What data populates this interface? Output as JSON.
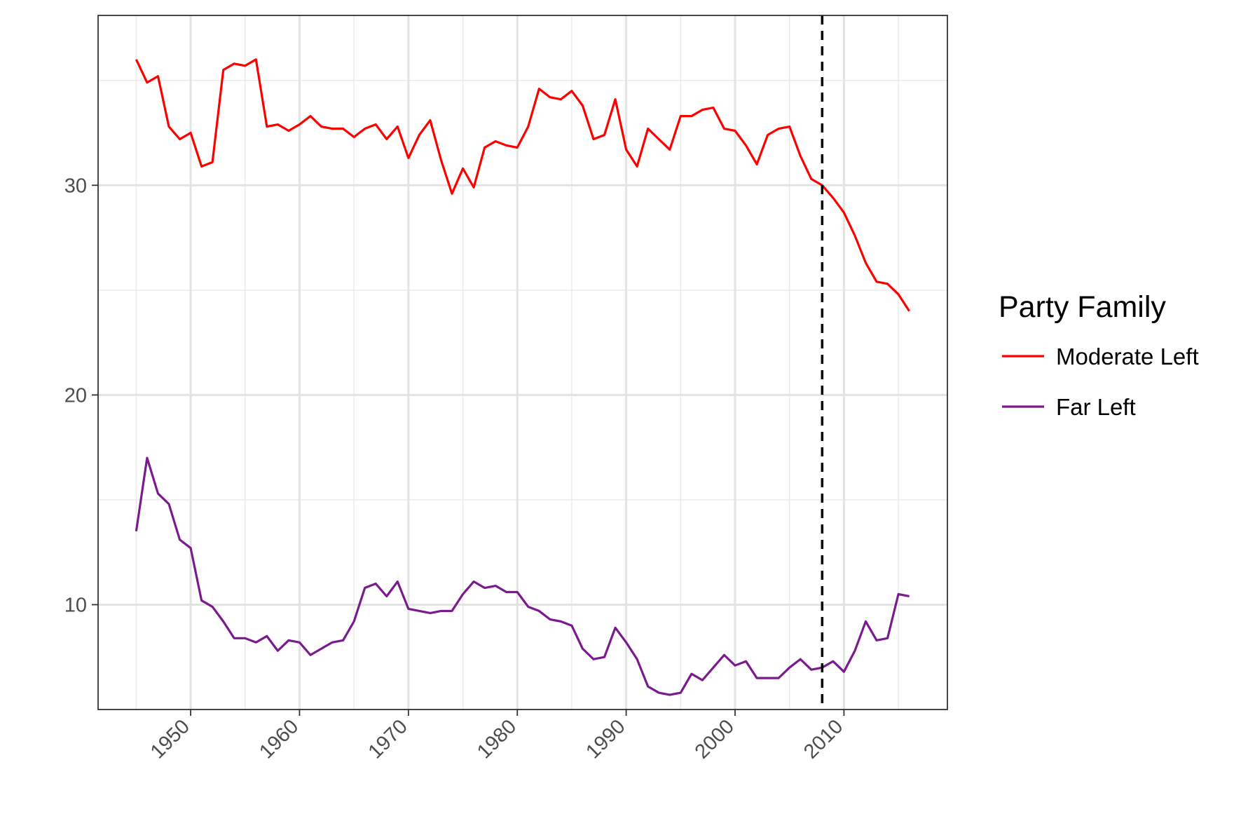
{
  "chart_data": {
    "type": "line",
    "xlim": [
      1941.5,
      2019.5
    ],
    "ylim": [
      5,
      38.1
    ],
    "x_ticks": [
      1950,
      1960,
      1970,
      1980,
      1990,
      2000,
      2010
    ],
    "x_tick_labels": [
      "1950",
      "1960",
      "1970",
      "1980",
      "1990",
      "2000",
      "2010"
    ],
    "x_minor_ticks": [
      1945,
      1955,
      1965,
      1975,
      1985,
      1995,
      2005,
      2015
    ],
    "y_ticks": [
      10,
      20,
      30
    ],
    "y_tick_labels": [
      "10",
      "20",
      "30"
    ],
    "y_minor_ticks": [
      5,
      15,
      25,
      35
    ],
    "grid": true,
    "vline": {
      "x": 2008,
      "style": "dashed",
      "color": "#000000"
    },
    "legend": {
      "title": "Party Family",
      "position": "right"
    },
    "x": [
      1945,
      1946,
      1947,
      1948,
      1949,
      1950,
      1951,
      1952,
      1953,
      1954,
      1955,
      1956,
      1957,
      1958,
      1959,
      1960,
      1961,
      1962,
      1963,
      1964,
      1965,
      1966,
      1967,
      1968,
      1969,
      1970,
      1971,
      1972,
      1973,
      1974,
      1975,
      1976,
      1977,
      1978,
      1979,
      1980,
      1981,
      1982,
      1983,
      1984,
      1985,
      1986,
      1987,
      1988,
      1989,
      1990,
      1991,
      1992,
      1993,
      1994,
      1995,
      1996,
      1997,
      1998,
      1999,
      2000,
      2001,
      2002,
      2003,
      2004,
      2005,
      2006,
      2007,
      2008,
      2009,
      2010,
      2011,
      2012,
      2013,
      2014,
      2015,
      2016
    ],
    "series": [
      {
        "name": "Moderate Left",
        "color": "#ff0000",
        "values": [
          36.0,
          34.9,
          35.2,
          32.8,
          32.2,
          32.5,
          30.9,
          31.1,
          35.5,
          35.8,
          35.7,
          36.0,
          32.8,
          32.9,
          32.6,
          32.9,
          33.3,
          32.8,
          32.7,
          32.7,
          32.3,
          32.7,
          32.9,
          32.2,
          32.8,
          31.3,
          32.4,
          33.1,
          31.2,
          29.6,
          30.8,
          29.9,
          31.8,
          32.1,
          31.9,
          31.8,
          32.8,
          34.6,
          34.2,
          34.1,
          34.5,
          33.8,
          32.2,
          32.4,
          34.1,
          31.7,
          30.9,
          32.7,
          32.2,
          31.7,
          33.3,
          33.3,
          33.6,
          33.7,
          32.7,
          32.6,
          31.9,
          31.0,
          32.4,
          32.7,
          32.8,
          31.4,
          30.3,
          30.0,
          29.4,
          28.7,
          27.6,
          26.3,
          25.4,
          25.3,
          24.8,
          24.0
        ]
      },
      {
        "name": "Far Left",
        "color": "#7b1a8f",
        "values": [
          13.5,
          17.0,
          15.3,
          14.8,
          13.1,
          12.7,
          10.2,
          9.9,
          9.2,
          8.4,
          8.4,
          8.2,
          8.5,
          7.8,
          8.3,
          8.2,
          7.6,
          7.9,
          8.2,
          8.3,
          9.2,
          10.8,
          11.0,
          10.4,
          11.1,
          9.8,
          9.7,
          9.6,
          9.7,
          9.7,
          10.5,
          11.1,
          10.8,
          10.9,
          10.6,
          10.6,
          9.9,
          9.7,
          9.3,
          9.2,
          9.0,
          7.9,
          7.4,
          7.5,
          8.9,
          8.2,
          7.4,
          6.1,
          5.8,
          5.7,
          5.8,
          6.7,
          6.4,
          7.0,
          7.6,
          7.1,
          7.3,
          6.5,
          6.5,
          6.5,
          7.0,
          7.4,
          6.9,
          7.0,
          7.3,
          6.8,
          7.8,
          9.2,
          8.3,
          8.4,
          10.5,
          10.4
        ]
      }
    ]
  }
}
